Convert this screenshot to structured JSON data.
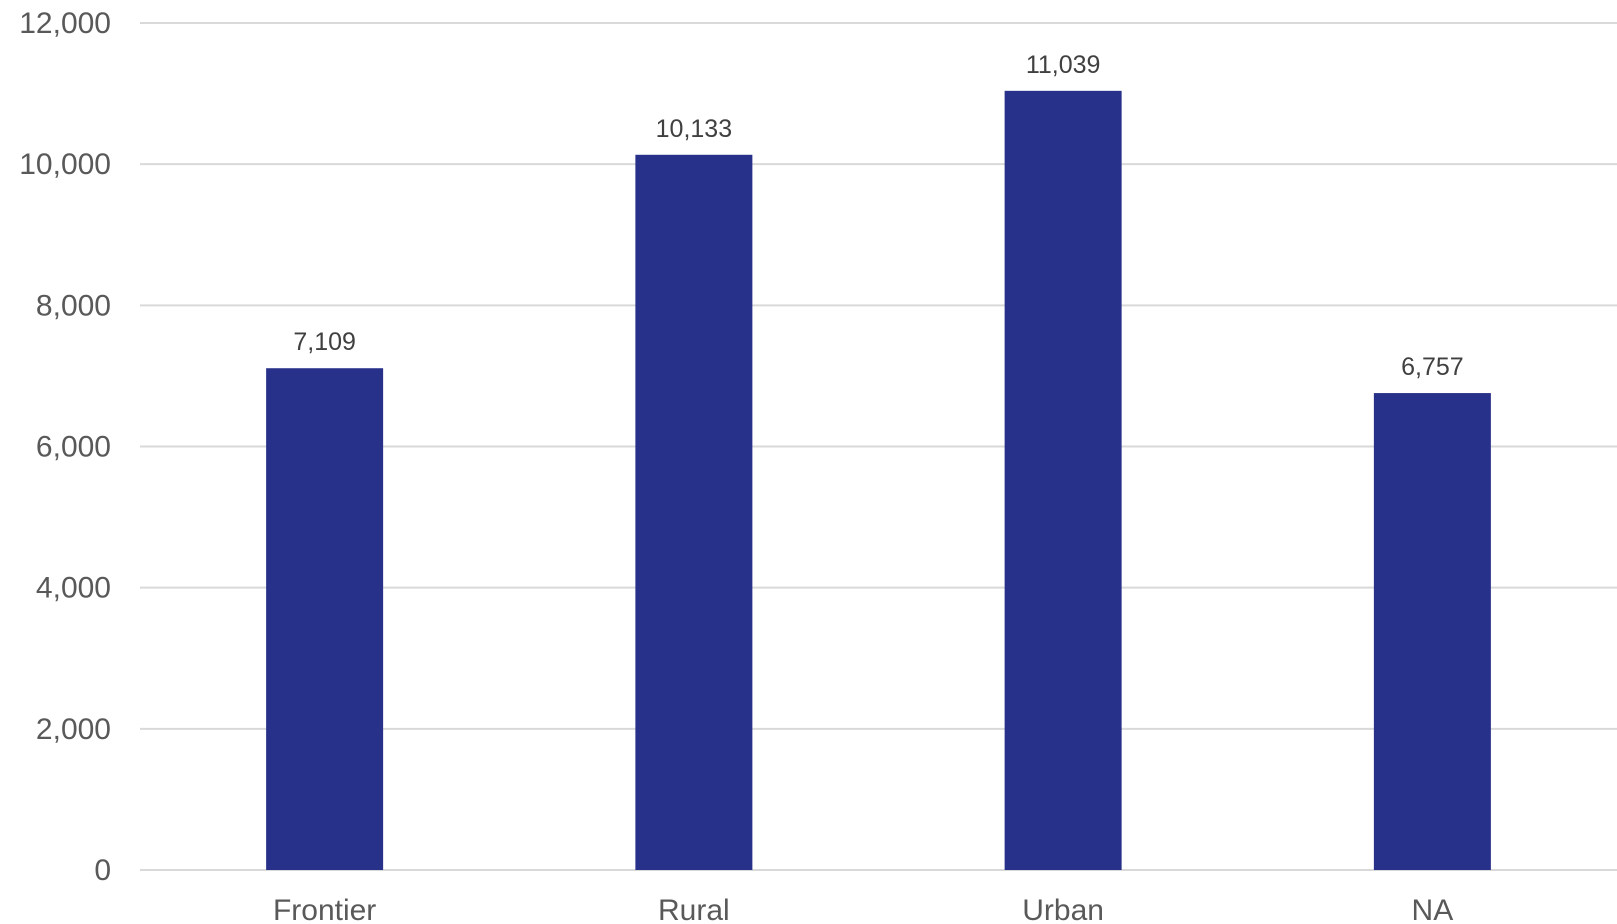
{
  "chart_data": {
    "type": "bar",
    "categories": [
      "Frontier",
      "Rural",
      "Urban",
      "NA"
    ],
    "values": [
      7109,
      10133,
      11039,
      6757
    ],
    "data_labels": [
      "7,109",
      "10,133",
      "11,039",
      "6,757"
    ],
    "title": "",
    "xlabel": "",
    "ylabel": "",
    "ylim": [
      0,
      12000
    ],
    "yticks": [
      0,
      2000,
      4000,
      6000,
      8000,
      10000,
      12000
    ],
    "ytick_labels": [
      "0",
      "2,000",
      "4,000",
      "6,000",
      "8,000",
      "10,000",
      "12,000"
    ],
    "grid": true,
    "legend": "none",
    "bar_color": "#283189"
  }
}
